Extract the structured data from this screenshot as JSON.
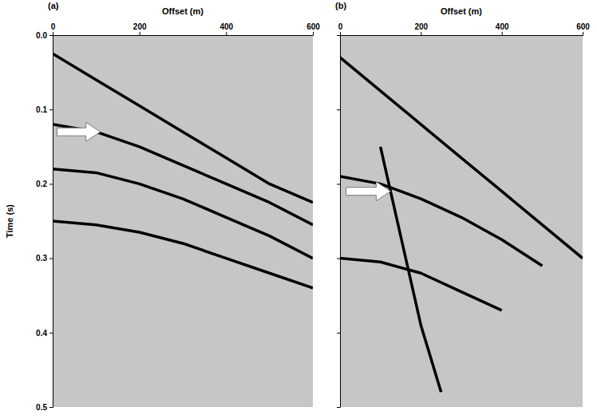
{
  "chart_data": [
    {
      "type": "line",
      "title": "(a)",
      "x_label": "Offset (m)",
      "y_label": "Time (s)",
      "xlim": [
        0,
        600
      ],
      "ylim": [
        0,
        0.5
      ],
      "xticks": [
        0,
        200,
        400,
        600
      ],
      "yticks": [
        {
          "value": 0,
          "label": "0.0"
        },
        {
          "value": 0.1,
          "label": "0.1"
        },
        {
          "value": 0.2,
          "label": "0.2"
        },
        {
          "value": 0.3,
          "label": "0.3"
        },
        {
          "value": 0.4,
          "label": "0.4"
        },
        {
          "value": 0.5,
          "label": "0.5"
        }
      ],
      "series": [
        {
          "color": "#000000",
          "x": [
            0,
            100,
            200,
            300,
            400,
            500,
            600
          ],
          "values": [
            0.025,
            0.06,
            0.095,
            0.13,
            0.165,
            0.2,
            0.225
          ]
        },
        {
          "color": "#000000",
          "x": [
            0,
            100,
            200,
            300,
            400,
            500,
            600
          ],
          "values": [
            0.12,
            0.13,
            0.15,
            0.175,
            0.2,
            0.225,
            0.255
          ]
        },
        {
          "color": "#000000",
          "x": [
            0,
            100,
            200,
            300,
            400,
            500,
            600
          ],
          "values": [
            0.18,
            0.185,
            0.2,
            0.22,
            0.245,
            0.27,
            0.3
          ]
        },
        {
          "color": "#000000",
          "x": [
            0,
            100,
            200,
            300,
            400,
            500,
            600
          ],
          "values": [
            0.25,
            0.255,
            0.265,
            0.28,
            0.3,
            0.32,
            0.34
          ]
        }
      ],
      "arrows": [
        {
          "x": 10,
          "y": 0.13,
          "x_end": 110,
          "y_end": 0.13
        }
      ]
    },
    {
      "type": "line",
      "title": "(b)",
      "x_label": "Offset (m)",
      "xlim": [
        0,
        600
      ],
      "ylim": [
        0,
        0.5
      ],
      "xticks": [
        0,
        200,
        400,
        600
      ],
      "yticks": [
        0,
        0.1,
        0.2,
        0.3,
        0.4,
        0.5
      ],
      "tick_labels": "x",
      "series": [
        {
          "color": "#000000",
          "x": [
            0,
            100,
            200,
            300,
            400,
            500,
            600
          ],
          "values": [
            0.03,
            0.075,
            0.12,
            0.165,
            0.21,
            0.255,
            0.3
          ]
        },
        {
          "color": "#000000",
          "x": [
            0,
            100,
            150,
            200,
            300,
            400,
            500
          ],
          "values": [
            0.19,
            0.2,
            0.21,
            0.22,
            0.245,
            0.275,
            0.31
          ]
        },
        {
          "color": "#000000",
          "x": [
            0,
            100,
            200,
            300,
            400
          ],
          "values": [
            0.3,
            0.305,
            0.32,
            0.345,
            0.37
          ]
        },
        {
          "color": "#000000",
          "x": [
            100,
            150,
            200,
            250
          ],
          "values": [
            0.15,
            0.27,
            0.39,
            0.48
          ]
        }
      ],
      "arrows": [
        {
          "x": 15,
          "y": 0.21,
          "x_end": 125,
          "y_end": 0.21
        }
      ]
    }
  ]
}
